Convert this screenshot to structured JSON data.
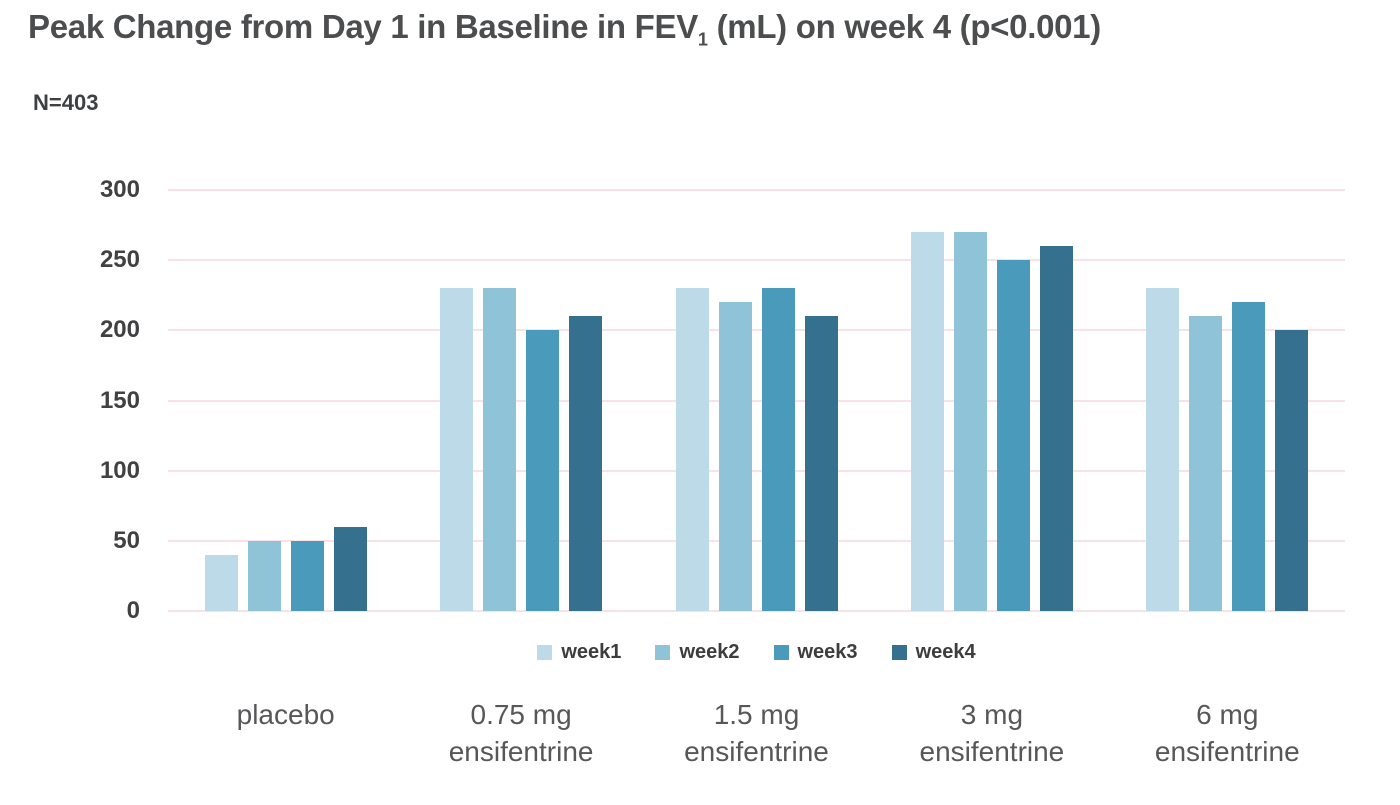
{
  "title": {
    "prefix": "Peak Change from Day 1 in Baseline in FEV",
    "subscript": "1",
    "suffix": " (mL) on week 4 (p<0.001)"
  },
  "n_label": "N=403",
  "colors": {
    "background": "#ffffff",
    "title_text": "#4c4d4f",
    "axis_text": "#414143",
    "category_text": "#565759",
    "gridline": "#f8e2ea"
  },
  "chart_data": {
    "type": "bar",
    "title": "Peak Change from Day 1 in Baseline in FEV1 (mL) on week 4 (p<0.001)",
    "subtitle": "N=403",
    "categories": [
      "placebo",
      "0.75 mg\nensifentrine",
      "1.5 mg\nensifentrine",
      "3 mg\nensifentrine",
      "6 mg\nensifentrine"
    ],
    "series": [
      {
        "name": "week1",
        "color": "#bcdae7",
        "values": [
          40,
          230,
          230,
          270,
          230
        ]
      },
      {
        "name": "week2",
        "color": "#8ec3d8",
        "values": [
          50,
          230,
          220,
          270,
          210
        ]
      },
      {
        "name": "week3",
        "color": "#4a9abc",
        "values": [
          50,
          200,
          230,
          250,
          220
        ]
      },
      {
        "name": "week4",
        "color": "#35708e",
        "values": [
          60,
          210,
          210,
          260,
          200
        ]
      }
    ],
    "xlabel": "",
    "ylabel": "",
    "ylim": [
      0,
      300
    ],
    "yticks": [
      0,
      50,
      100,
      150,
      200,
      250,
      300
    ],
    "grid": true,
    "gridline_color": "#f8e2ea",
    "legend_position": "bottom"
  }
}
